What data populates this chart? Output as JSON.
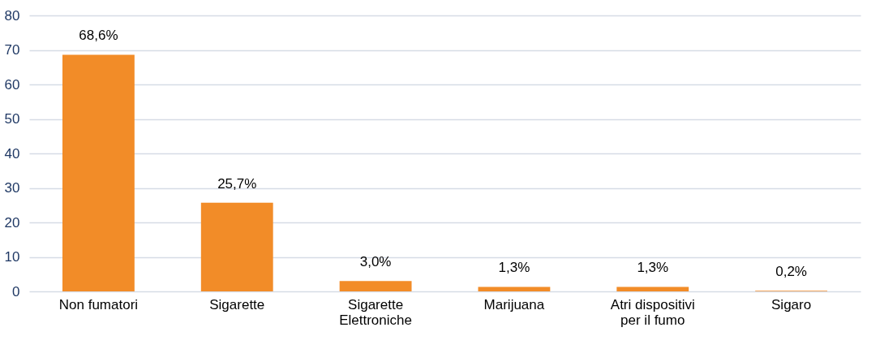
{
  "chart_data": {
    "type": "bar",
    "categories": [
      "Non fumatori",
      "Sigarette",
      "Sigarette Elettroniche",
      "Marijuana",
      "Atri dispositivi per il fumo",
      "Sigaro"
    ],
    "values": [
      68.6,
      25.7,
      3.0,
      1.3,
      1.3,
      0.2
    ],
    "value_labels": [
      "68,6%",
      "25,7%",
      "3,0%",
      "1,3%",
      "1,3%",
      "0,2%"
    ],
    "color": "#f28c28",
    "ylim": [
      0,
      80
    ],
    "yticks": [
      0,
      10,
      20,
      30,
      40,
      50,
      60,
      70,
      80
    ],
    "grid": "y"
  }
}
